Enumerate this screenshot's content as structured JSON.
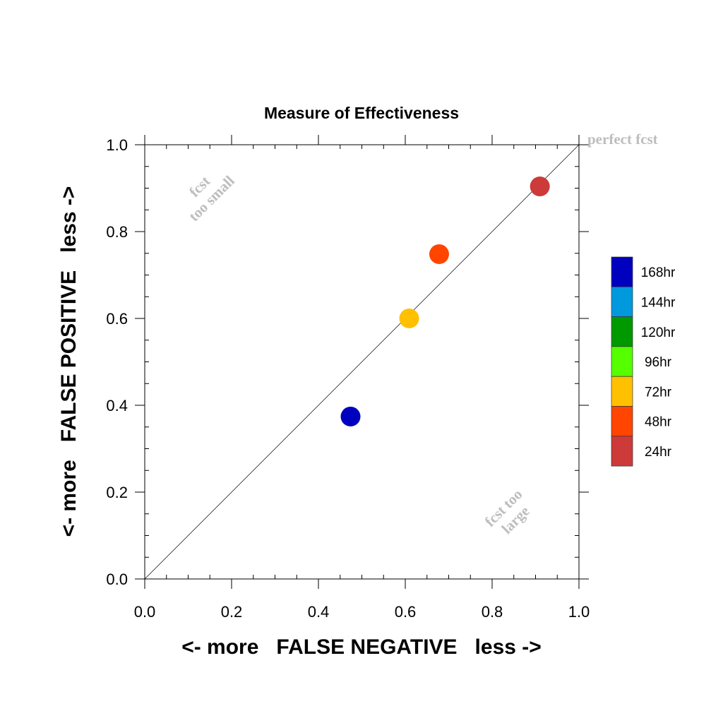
{
  "chart_data": {
    "type": "scatter",
    "title": "Measure of Effectiveness",
    "xlabel": "<- more   FALSE NEGATIVE   less ->",
    "ylabel": "<- more   FALSE POSITIVE   less ->",
    "xlim": [
      0.0,
      1.0
    ],
    "ylim": [
      0.0,
      1.0
    ],
    "x_ticks": [
      "0.0",
      "0.2",
      "0.4",
      "0.6",
      "0.8",
      "1.0"
    ],
    "y_ticks": [
      "0.0",
      "0.2",
      "0.4",
      "0.6",
      "0.8",
      "1.0"
    ],
    "grid": false,
    "reference_line": {
      "from": [
        0.0,
        0.0
      ],
      "to": [
        1.0,
        1.0
      ],
      "label": "perfect fcst"
    },
    "annotations": [
      {
        "lines": [
          "fcst",
          "too small"
        ],
        "x": 0.14,
        "y": 0.89
      },
      {
        "lines": [
          "fcst too",
          "large"
        ],
        "x": 0.84,
        "y": 0.15
      }
    ],
    "points": [
      {
        "label": "168hr",
        "x": 0.474,
        "y": 0.374,
        "color": "#0000bf"
      },
      {
        "label": "72hr",
        "x": 0.609,
        "y": 0.6,
        "color": "#ffc000"
      },
      {
        "label": "48hr",
        "x": 0.678,
        "y": 0.748,
        "color": "#ff4500"
      },
      {
        "label": "24hr",
        "x": 0.91,
        "y": 0.904,
        "color": "#cd3a3a"
      }
    ],
    "legend": {
      "position": "right",
      "entries": [
        {
          "label": "168hr",
          "color": "#0000bf"
        },
        {
          "label": "144hr",
          "color": "#0099dd"
        },
        {
          "label": "120hr",
          "color": "#009900"
        },
        {
          "label": "96hr",
          "color": "#55ff00"
        },
        {
          "label": "72hr",
          "color": "#ffc000"
        },
        {
          "label": "48hr",
          "color": "#ff4500"
        },
        {
          "label": "24hr",
          "color": "#cd3a3a"
        }
      ]
    }
  }
}
